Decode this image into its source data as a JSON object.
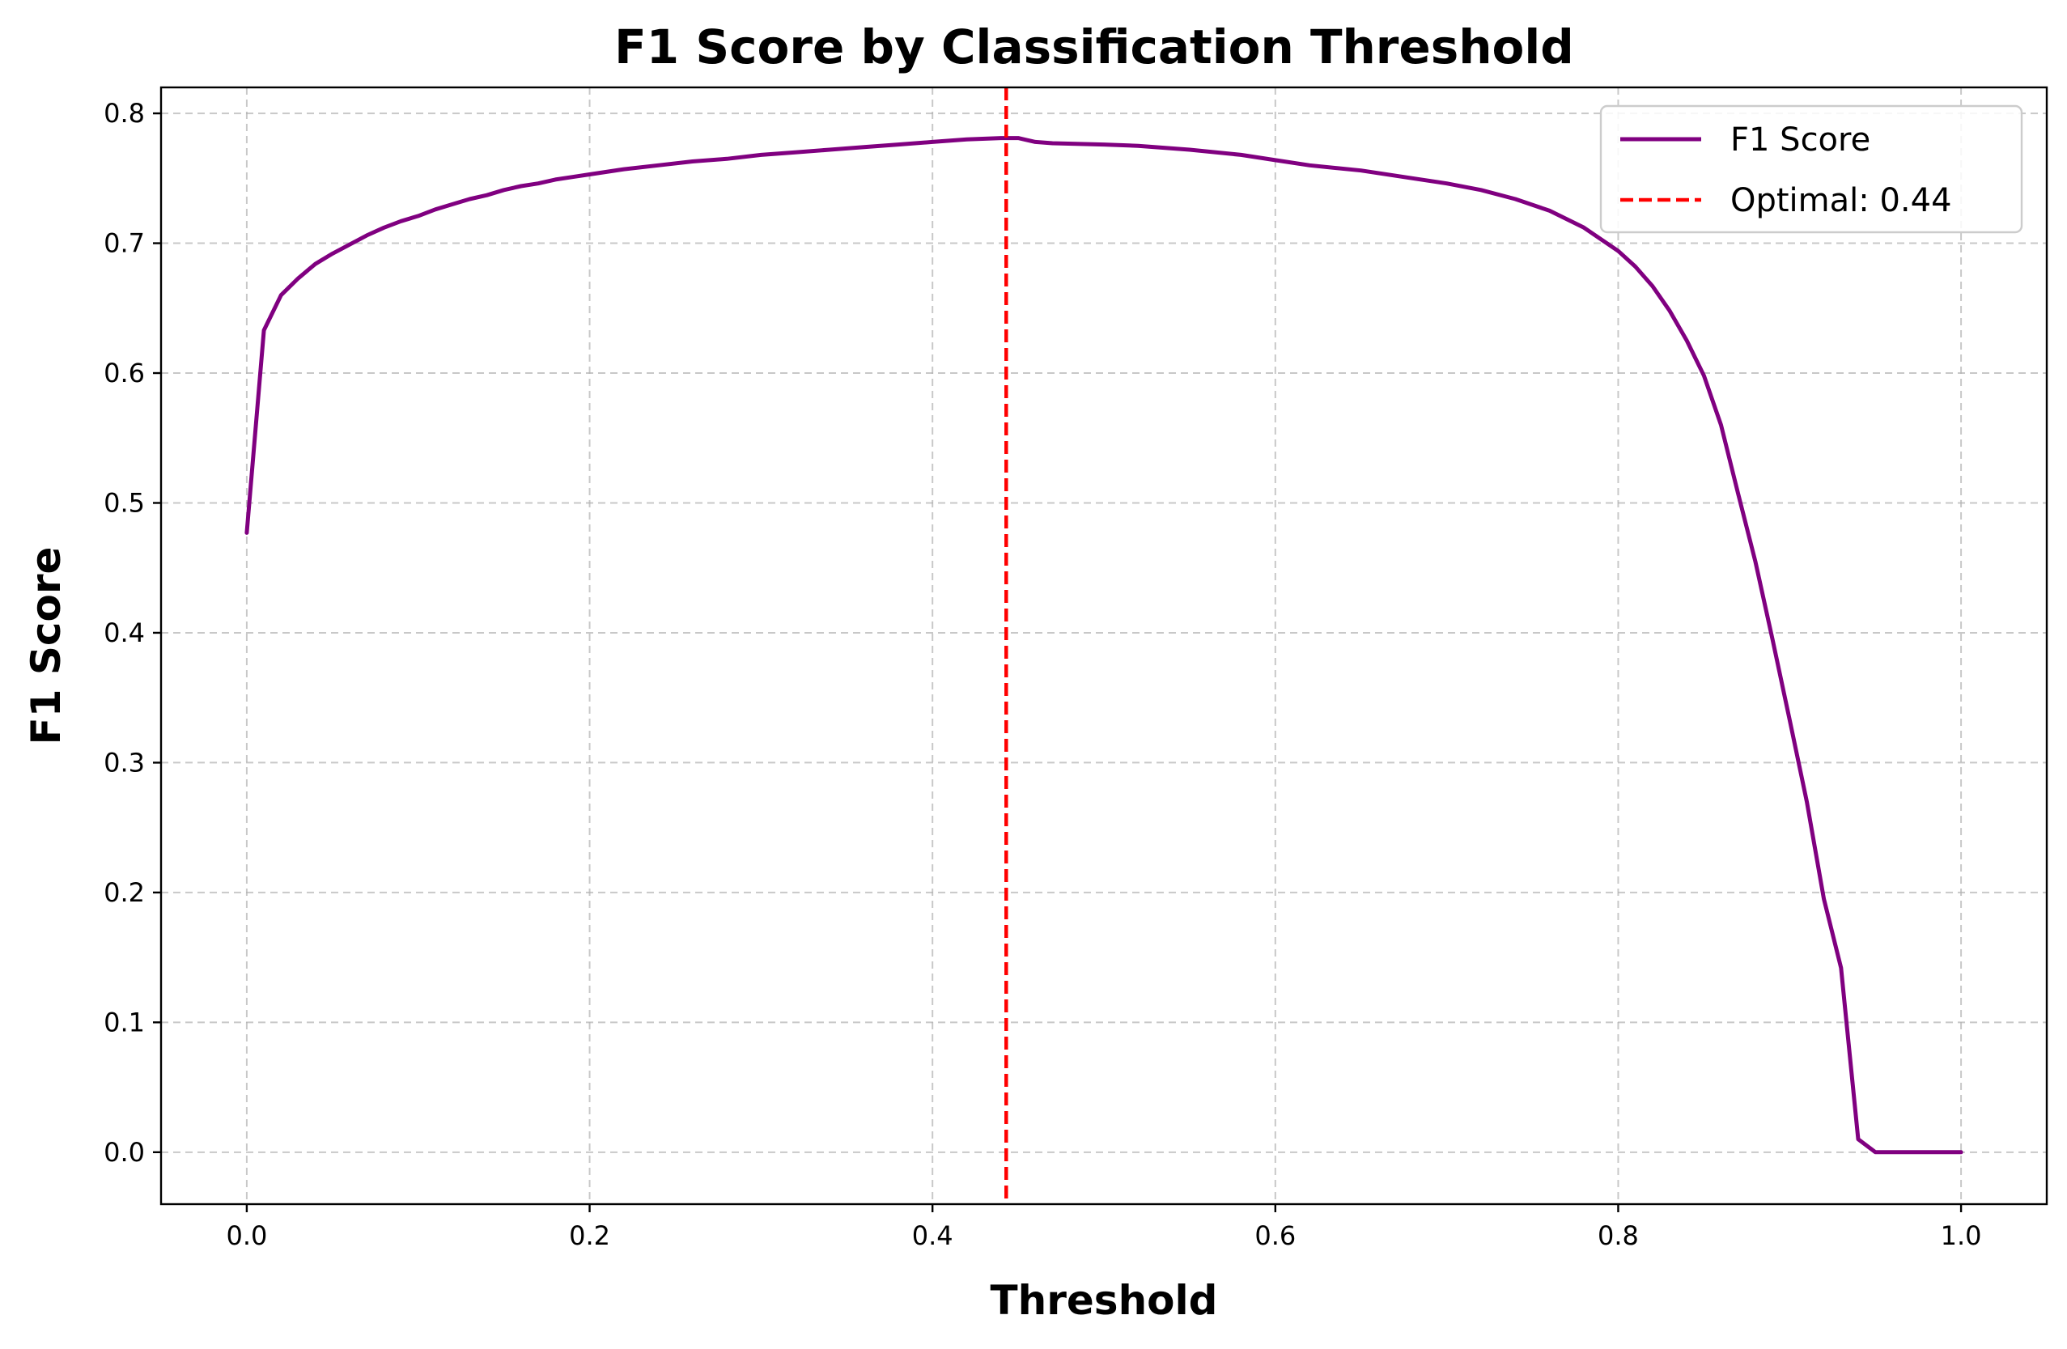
{
  "chart_data": {
    "type": "line",
    "title": "F1 Score by Classification Threshold",
    "xlabel": "Threshold",
    "ylabel": "F1 Score",
    "xlim": [
      -0.05,
      1.05
    ],
    "ylim": [
      -0.04,
      0.82
    ],
    "xticks": [
      0.0,
      0.2,
      0.4,
      0.6,
      0.8,
      1.0
    ],
    "xtick_labels": [
      "0.0",
      "0.2",
      "0.4",
      "0.6",
      "0.8",
      "1.0"
    ],
    "yticks": [
      0.0,
      0.1,
      0.2,
      0.3,
      0.4,
      0.5,
      0.6,
      0.7,
      0.8
    ],
    "ytick_labels": [
      "0.0",
      "0.1",
      "0.2",
      "0.3",
      "0.4",
      "0.5",
      "0.6",
      "0.7",
      "0.8"
    ],
    "grid": true,
    "legend_position": "top-right",
    "series": [
      {
        "name": "F1 Score",
        "color": "#800080",
        "style": "solid",
        "x": [
          0.0,
          0.01,
          0.02,
          0.03,
          0.04,
          0.05,
          0.06,
          0.07,
          0.08,
          0.09,
          0.1,
          0.11,
          0.12,
          0.13,
          0.14,
          0.15,
          0.16,
          0.17,
          0.18,
          0.19,
          0.2,
          0.22,
          0.24,
          0.26,
          0.28,
          0.3,
          0.32,
          0.34,
          0.36,
          0.38,
          0.4,
          0.42,
          0.44,
          0.45,
          0.46,
          0.47,
          0.5,
          0.52,
          0.55,
          0.58,
          0.6,
          0.62,
          0.65,
          0.68,
          0.7,
          0.72,
          0.74,
          0.76,
          0.78,
          0.8,
          0.81,
          0.82,
          0.83,
          0.84,
          0.85,
          0.86,
          0.87,
          0.88,
          0.89,
          0.9,
          0.91,
          0.92,
          0.93,
          0.94,
          0.95,
          0.96,
          0.97,
          0.98,
          0.99,
          1.0
        ],
        "y": [
          0.477,
          0.633,
          0.66,
          0.673,
          0.684,
          0.692,
          0.699,
          0.706,
          0.712,
          0.717,
          0.721,
          0.726,
          0.73,
          0.734,
          0.737,
          0.741,
          0.744,
          0.746,
          0.749,
          0.751,
          0.753,
          0.757,
          0.76,
          0.763,
          0.765,
          0.768,
          0.77,
          0.772,
          0.774,
          0.776,
          0.778,
          0.78,
          0.781,
          0.781,
          0.778,
          0.777,
          0.776,
          0.775,
          0.772,
          0.768,
          0.764,
          0.76,
          0.756,
          0.75,
          0.746,
          0.741,
          0.734,
          0.725,
          0.712,
          0.694,
          0.682,
          0.667,
          0.648,
          0.625,
          0.598,
          0.56,
          0.507,
          0.455,
          0.395,
          0.333,
          0.27,
          0.195,
          0.142,
          0.01,
          0.0,
          0.0,
          0.0,
          0.0,
          0.0,
          0.0
        ]
      },
      {
        "name": "Optimal: 0.44",
        "color": "#ff0000",
        "style": "dashed",
        "vline_x": 0.443
      }
    ]
  }
}
